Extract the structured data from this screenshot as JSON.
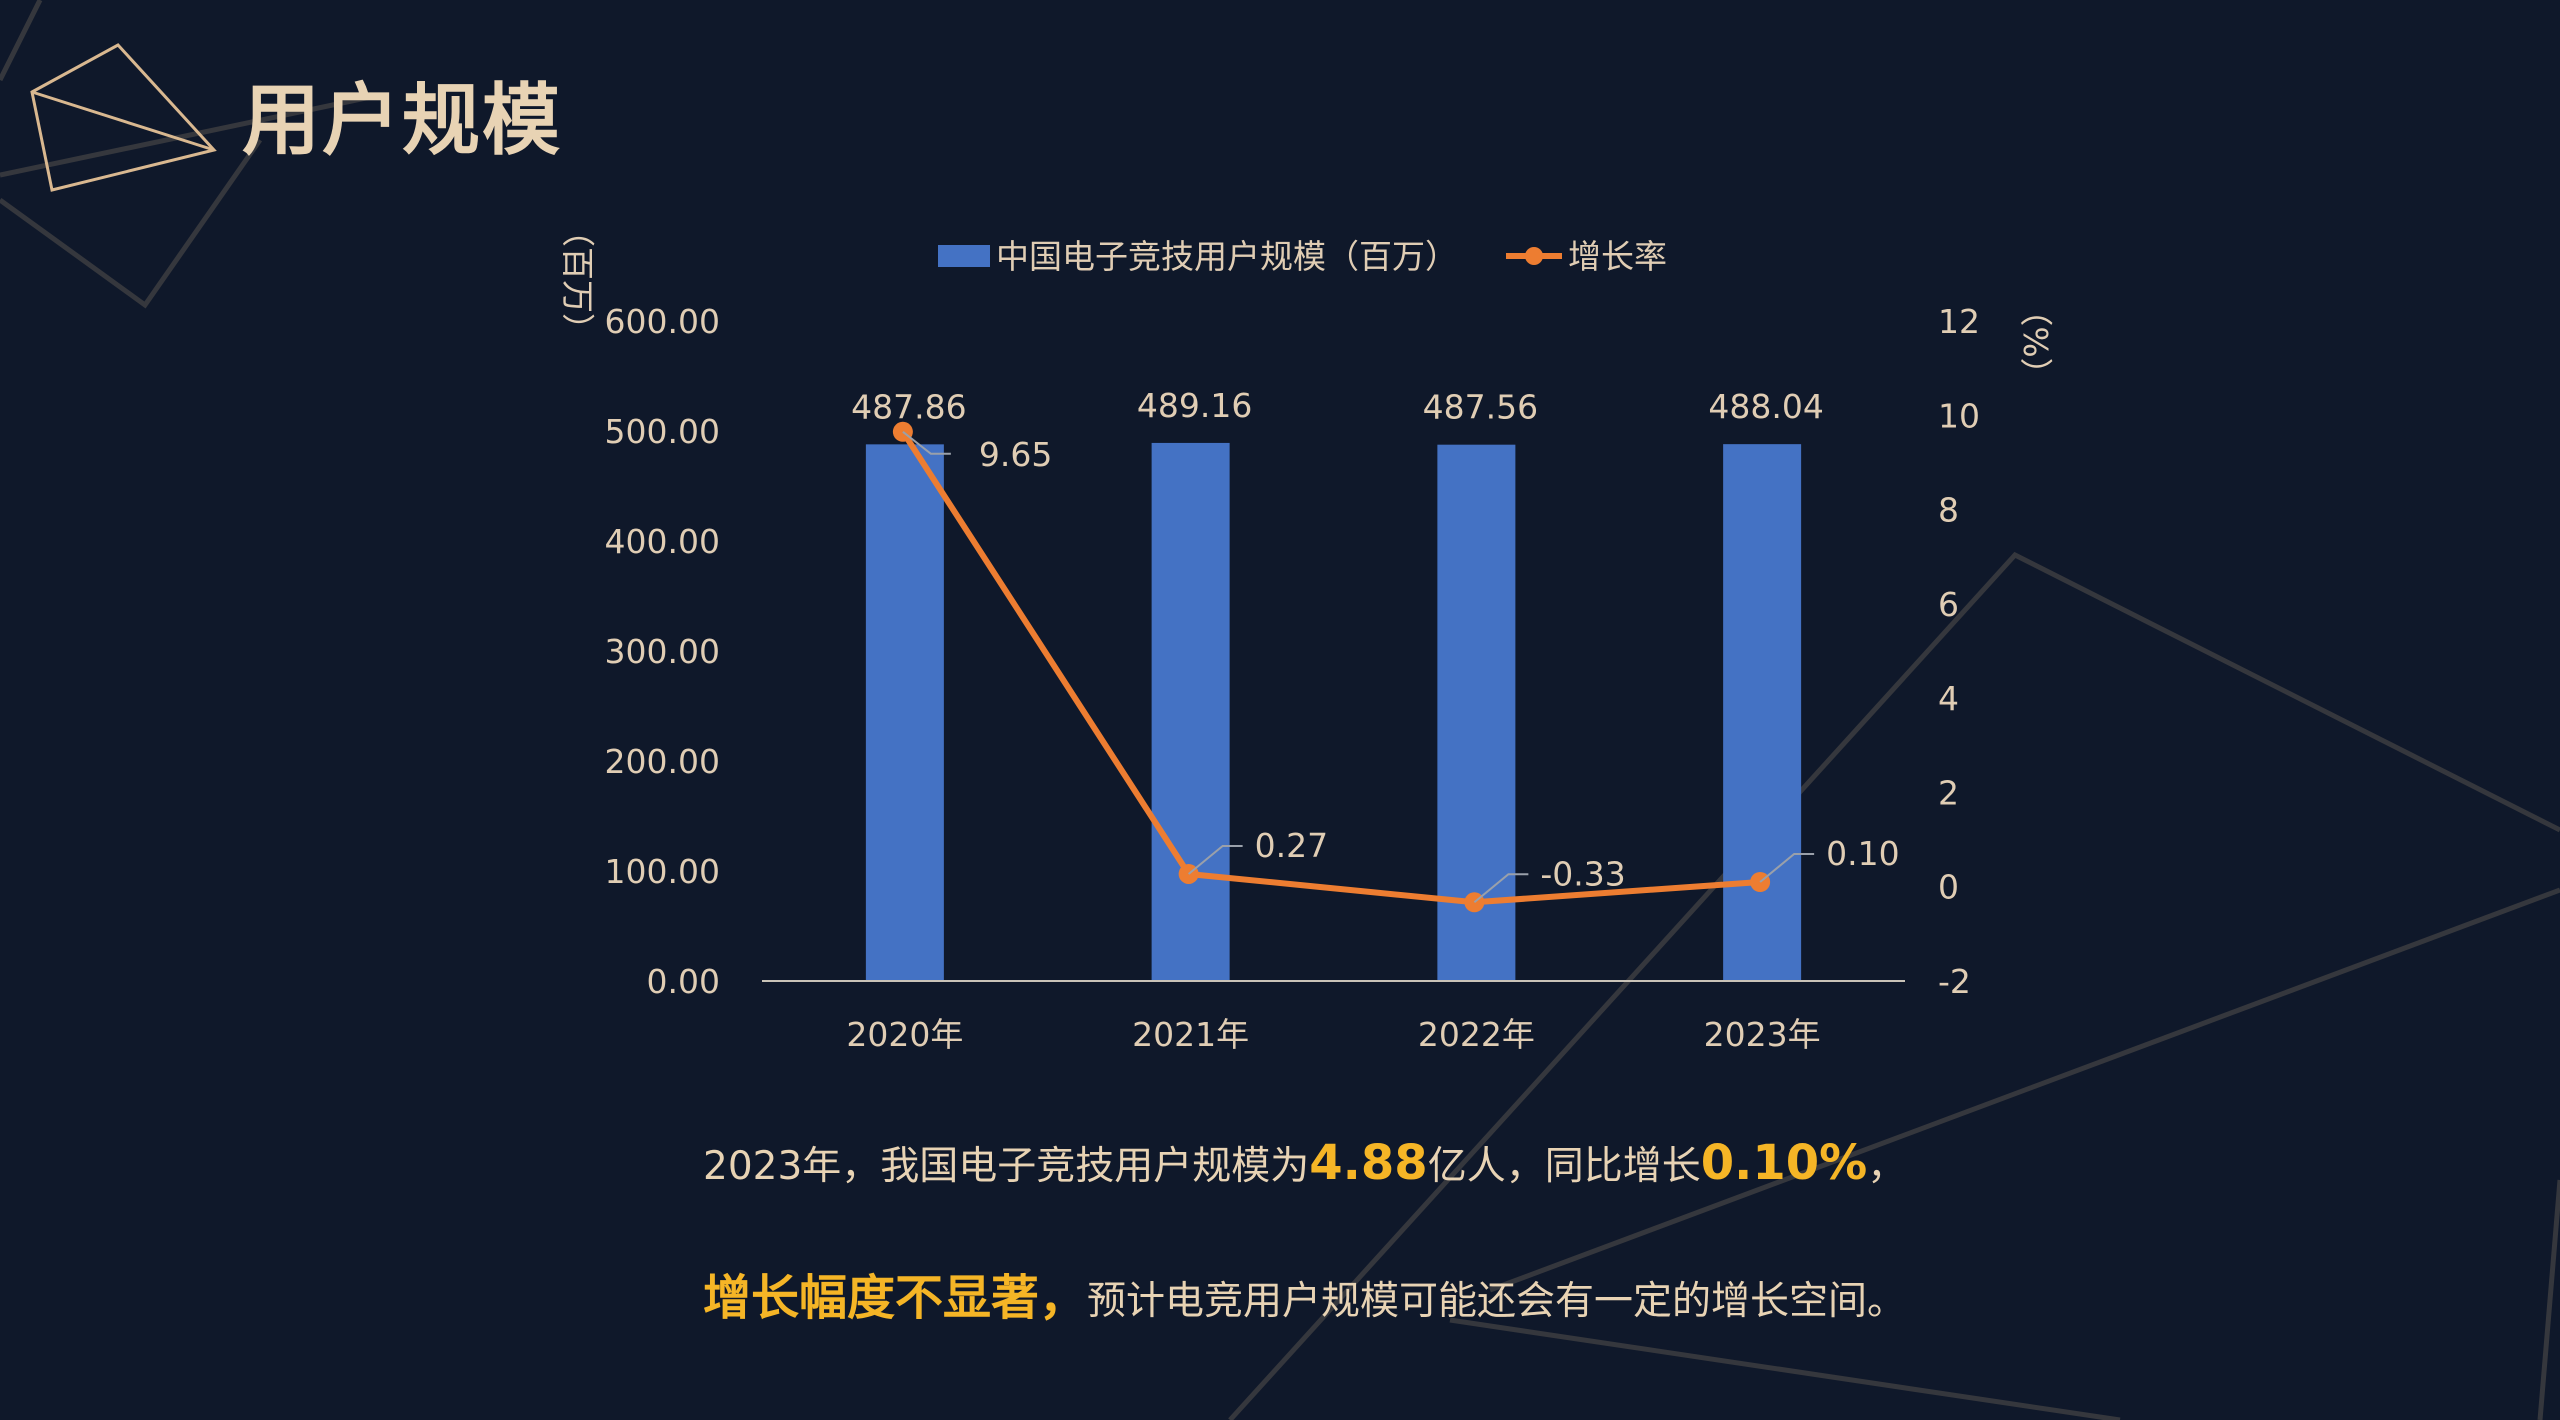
{
  "page": {
    "title": "用户规模"
  },
  "chart_data": {
    "type": "bar",
    "categories": [
      "2020年",
      "2021年",
      "2022年",
      "2023年"
    ],
    "series": [
      {
        "name": "中国电子竞技用户规模（百万）",
        "type": "bar",
        "axis": "left",
        "values": [
          487.86,
          489.16,
          487.56,
          488.04
        ],
        "labels": [
          "487.86",
          "489.16",
          "487.56",
          "488.04"
        ]
      },
      {
        "name": "增长率",
        "type": "line",
        "axis": "right",
        "values": [
          9.65,
          0.27,
          -0.33,
          0.1
        ],
        "labels": [
          "9.65",
          "0.27",
          "-0.33",
          "0.10"
        ]
      }
    ],
    "y_left": {
      "label": "（百万）",
      "ylim": [
        0,
        600
      ],
      "ticks": [
        "0.00",
        "100.00",
        "200.00",
        "300.00",
        "400.00",
        "500.00",
        "600.00"
      ]
    },
    "y_right": {
      "label": "（%）",
      "ylim": [
        -2,
        12
      ],
      "ticks": [
        "-2",
        "0",
        "2",
        "4",
        "6",
        "8",
        "10",
        "12"
      ]
    },
    "legend_position": "top-center",
    "grid": false,
    "colors": {
      "bar": "#4472c4",
      "line": "#ed7d31"
    }
  },
  "summary": {
    "line1_a": "2023年，我国电子竞技用户规模为",
    "line1_b": "4.88",
    "line1_c": "亿人，同比增长",
    "line1_d": "0.10%",
    "line1_e": "，",
    "line2_a": "增长幅度不显著，",
    "line2_b": "预计电竞用户规模可能还会有一定的增长空间。"
  },
  "colors": {
    "background": "#0f182a",
    "title": "#e8d3b4",
    "highlight": "#f5b526",
    "axis_text": "#e0cdb4",
    "decor_lines": "#3a3a40"
  }
}
